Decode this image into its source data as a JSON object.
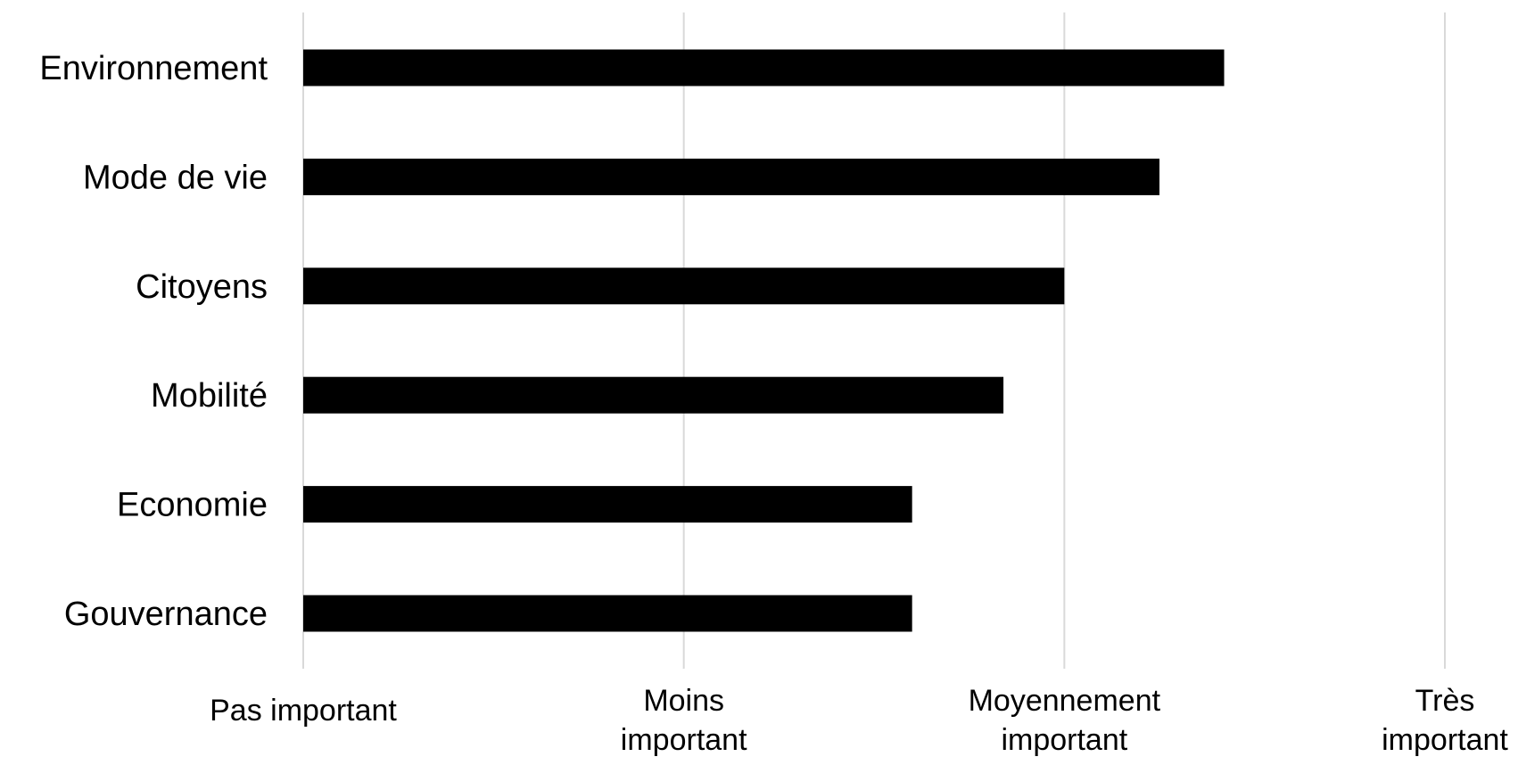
{
  "chart_data": {
    "type": "bar",
    "orientation": "horizontal",
    "categories": [
      "Environnement",
      "Mode de vie",
      "Citoyens",
      "Mobilité",
      "Economie",
      "Gouvernance"
    ],
    "values": [
      3.42,
      3.25,
      3.0,
      2.84,
      2.6,
      2.6
    ],
    "title": "",
    "xlabel": "",
    "ylabel": "",
    "xlim": [
      1,
      4
    ],
    "x_ticks": [
      {
        "value": 1,
        "label": [
          "Pas important"
        ]
      },
      {
        "value": 2,
        "label": [
          "Moins",
          "important"
        ]
      },
      {
        "value": 3,
        "label": [
          "Moyennement",
          "important"
        ]
      },
      {
        "value": 4,
        "label": [
          "Très",
          "important"
        ]
      }
    ],
    "grid": true,
    "legend": "none",
    "colors": {
      "bar": "#000000",
      "grid": "#d9d9d9",
      "text": "#000000"
    }
  }
}
